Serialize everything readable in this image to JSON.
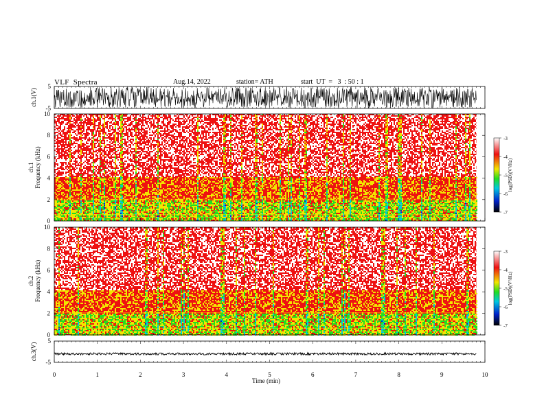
{
  "header": {
    "title": "VLF  Spectra",
    "date": "Aug.14, 2022",
    "station": "station= ATH",
    "start_ut": "start  UT  =   3  : 50 : 1"
  },
  "chart_data": [
    {
      "type": "line",
      "panel": "ch1-waveform",
      "ylabel": "ch.1(V)",
      "ylim": [
        -5,
        5
      ],
      "yticks": [
        "5",
        "-5"
      ],
      "xlim": [
        0,
        10
      ],
      "description_amplitude": "noise filling nearly full range",
      "color": "#000000"
    },
    {
      "type": "heatmap",
      "panel": "ch1-spectrogram",
      "ylabel_top": "ch.1",
      "ylabel": "Frequency  (kHz)",
      "ylim": [
        0,
        10
      ],
      "yticks": [
        "0",
        "2",
        "4",
        "6",
        "8",
        "10"
      ],
      "xlim": [
        0,
        10
      ],
      "data_end_min": 9.8,
      "colorbar": {
        "label": "log(PSD)(V²/Hz)",
        "range": [
          -7,
          -3
        ],
        "ticks": [
          "-3",
          "-4",
          "-5",
          "-6",
          "-7"
        ]
      },
      "bands_khz": [
        {
          "from": 0,
          "to": 2,
          "level": -4.6
        },
        {
          "from": 2,
          "to": 4.2,
          "level": -4.0
        },
        {
          "from": 4.2,
          "to": 10,
          "level": -3.4
        }
      ]
    },
    {
      "type": "heatmap",
      "panel": "ch2-spectrogram",
      "ylabel_top": "ch.2",
      "ylabel": "Frequency  (kHz)",
      "ylim": [
        0,
        10
      ],
      "yticks": [
        "0",
        "2",
        "4",
        "6",
        "8",
        "10"
      ],
      "xlim": [
        0,
        10
      ],
      "data_end_min": 9.8,
      "colorbar": {
        "label": "log(PSD)(V²/Hz)",
        "range": [
          -7,
          -3
        ],
        "ticks": [
          "-3",
          "-4",
          "-5",
          "-6",
          "-7"
        ]
      },
      "bands_khz": [
        {
          "from": 0,
          "to": 2,
          "level": -4.6
        },
        {
          "from": 2,
          "to": 4.2,
          "level": -4.0
        },
        {
          "from": 4.2,
          "to": 10,
          "level": -3.4
        }
      ]
    },
    {
      "type": "line",
      "panel": "ch3-waveform",
      "ylabel": "ch.3(V)",
      "ylim": [
        -5,
        5
      ],
      "yticks": [
        "5",
        "-5"
      ],
      "xlim": [
        0,
        10
      ],
      "level_v": -1.0,
      "color": "#000000"
    }
  ],
  "xaxis": {
    "label": "Time  (min)",
    "ticks": [
      "0",
      "1",
      "2",
      "3",
      "4",
      "5",
      "6",
      "7",
      "8",
      "9",
      "10"
    ]
  },
  "colors": {
    "white": "#ffffff",
    "red": "#ee1111",
    "yellow": "#f2e600",
    "green": "#22dd22",
    "cyan": "#00c8e0",
    "blue": "#0022cc",
    "black": "#000000"
  }
}
